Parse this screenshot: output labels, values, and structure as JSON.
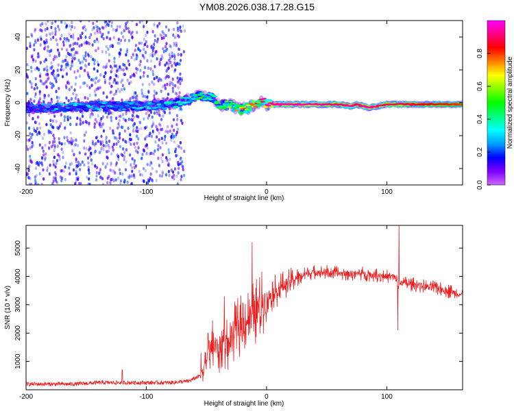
{
  "title": "YM08.2026.038.17.28.G15",
  "colors": {
    "spectrogram_scatter": "#7b2fd6",
    "band_low": "#6a00d8",
    "band_mid": "#00e0e0",
    "band_high": "#ff1a1a",
    "snr_line": "#ee1c1c",
    "axes": "#000000"
  },
  "chart_data": [
    {
      "type": "heatmap",
      "title": "",
      "xlabel": "Height of straight line (km)",
      "ylabel": "Frequency (Hz)",
      "xlim": [
        -200,
        163
      ],
      "ylim": [
        -50,
        50
      ],
      "xticks": [
        -200,
        -100,
        0,
        100
      ],
      "xtick_labels": [
        "-200",
        "-100",
        "0",
        "100"
      ],
      "yticks": [
        -40,
        -20,
        0,
        20,
        40
      ],
      "ytick_labels": [
        "-40",
        "-20",
        "0",
        "20",
        "40"
      ],
      "grid": false,
      "colorbar": {
        "label": "Normalized spectral amplitude",
        "range": [
          0,
          1
        ],
        "ticks": [
          0.0,
          0.2,
          0.4,
          0.6,
          0.8
        ],
        "tick_labels": [
          "0.0",
          "0.2",
          "0.4",
          "0.6",
          "0.8"
        ],
        "colormap": [
          "#cc66ff",
          "#8000ff",
          "#0000ff",
          "#00a0ff",
          "#00ffff",
          "#00ff80",
          "#00ff00",
          "#80ff00",
          "#ffff00",
          "#ff8000",
          "#ff0000",
          "#ff0080",
          "#ff00ff"
        ]
      },
      "noise_region": {
        "x_from": -200,
        "x_to": -68,
        "freq_from": -50,
        "freq_to": 50,
        "amplitude": 0.15
      },
      "band_ridge": {
        "description_free": true,
        "x": [
          -200,
          -170,
          -140,
          -110,
          -80,
          -65,
          -55,
          -45,
          -38,
          -32,
          -28,
          -22,
          -15,
          -8,
          -3,
          0,
          20,
          40,
          60,
          70,
          75,
          85,
          100,
          110,
          130,
          163
        ],
        "freq": [
          -3,
          -3,
          -2,
          -2,
          -1,
          2,
          4,
          3,
          -2,
          -1,
          -2,
          -4,
          -3,
          0,
          1,
          -1,
          -1,
          -1,
          -1,
          -2,
          -1,
          -3,
          -1,
          -1,
          -1,
          -1
        ],
        "amplitude": [
          0.2,
          0.3,
          0.3,
          0.3,
          0.35,
          0.4,
          0.45,
          0.4,
          0.5,
          0.55,
          0.6,
          0.7,
          0.75,
          0.8,
          0.85,
          0.95,
          0.95,
          0.95,
          0.9,
          0.95,
          0.9,
          0.95,
          0.9,
          0.9,
          0.85,
          0.8
        ]
      }
    },
    {
      "type": "line",
      "title": "",
      "xlabel": "Height of straight line (km)",
      "ylabel": "SNR (10 * v/v)",
      "xlim": [
        -200,
        163
      ],
      "ylim": [
        0,
        5800
      ],
      "xticks": [
        -200,
        -100,
        0,
        100
      ],
      "xtick_labels": [
        "-200",
        "-100",
        "0",
        "100"
      ],
      "yticks": [
        1000,
        2000,
        3000,
        4000,
        5000
      ],
      "ytick_labels": [
        "1000",
        "2000",
        "3000",
        "4000",
        "5000"
      ],
      "grid": false,
      "series": [
        {
          "x": [
            -200,
            -180,
            -160,
            -140,
            -120,
            -100,
            -80,
            -65,
            -55,
            -52,
            -48,
            -44,
            -40,
            -36,
            -32,
            -28,
            -24,
            -20,
            -16,
            -12,
            -8,
            -4,
            0,
            5,
            10,
            15,
            20,
            25,
            30,
            40,
            50,
            60,
            70,
            80,
            90,
            100,
            105,
            108,
            110,
            112,
            116,
            125,
            140,
            150,
            163
          ],
          "y": [
            200,
            200,
            200,
            250,
            250,
            250,
            250,
            300,
            500,
            900,
            1300,
            1600,
            1400,
            1800,
            1500,
            2000,
            2200,
            2300,
            2500,
            2600,
            2800,
            3000,
            3200,
            3400,
            3550,
            3700,
            3850,
            3950,
            4050,
            4150,
            4150,
            4100,
            4100,
            4100,
            4050,
            4000,
            4000,
            3900,
            3600,
            3800,
            3750,
            3700,
            3600,
            3500,
            3350
          ],
          "peaks": [
            {
              "x": -120,
              "y": 700
            },
            {
              "x": -35,
              "y": 3300
            },
            {
              "x": -12,
              "y": 5200
            },
            {
              "x": 110,
              "y": 5950
            },
            {
              "x": 109,
              "y": 2100
            }
          ]
        }
      ]
    }
  ]
}
